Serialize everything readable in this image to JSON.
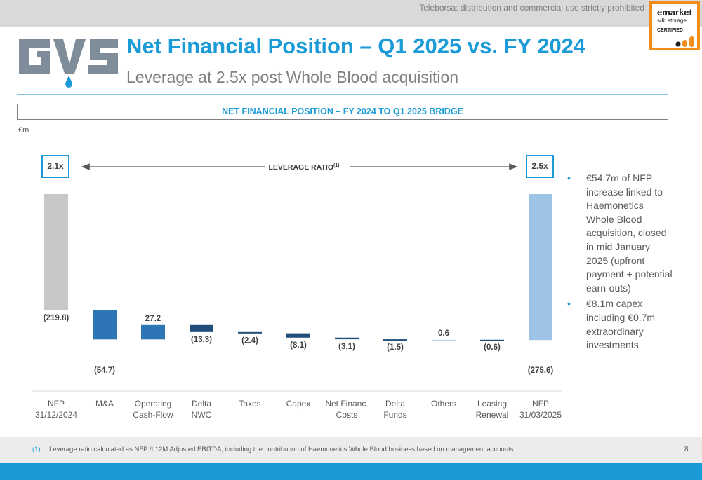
{
  "banner": {
    "text": "Teleborsa: distribution and commercial use strictly prohibited"
  },
  "emarket": {
    "line1": "emarket",
    "line2": "sdir storage",
    "line3": "CERTIFIED"
  },
  "logo": {
    "text": "GVS"
  },
  "header": {
    "title": "Net Financial Position – Q1 2025 vs. FY 2024",
    "subtitle": "Leverage at 2.5x post Whole Blood acquisition"
  },
  "section": {
    "title": "NET FINANCIAL POSITION –  FY 2024 TO Q1 2025 BRIDGE",
    "unit": "€m"
  },
  "leverage": {
    "label": "LEVERAGE RATIO",
    "sup": "(1)",
    "start": "2.1x",
    "end": "2.5x"
  },
  "chart_data": {
    "type": "bar",
    "subtype": "waterfall",
    "title": "NET FINANCIAL POSITION –  FY 2024 TO Q1 2025 BRIDGE",
    "ylabel": "€m",
    "categories": [
      [
        "NFP",
        "31/12/2024"
      ],
      [
        "M&A"
      ],
      [
        "Operating",
        "Cash-Flow"
      ],
      [
        "Delta",
        "NWC"
      ],
      [
        "Taxes"
      ],
      [
        "Capex"
      ],
      [
        "Net Financ.",
        "Costs"
      ],
      [
        "Delta",
        "Funds"
      ],
      [
        "Others"
      ],
      [
        "Leasing",
        "Renewal"
      ],
      [
        "NFP",
        "31/03/2025"
      ]
    ],
    "values": [
      -219.8,
      -54.7,
      27.2,
      -13.3,
      -2.4,
      -8.1,
      -3.1,
      -1.5,
      0.6,
      -0.6,
      -275.6
    ],
    "labels": [
      "(219.8)",
      "(54.7)",
      "27.2",
      "(13.3)",
      "(2.4)",
      "(8.1)",
      "(3.1)",
      "(1.5)",
      "0.6",
      "(0.6)",
      "(275.6)"
    ],
    "kinds": [
      "total",
      "delta",
      "delta",
      "delta",
      "delta",
      "delta",
      "delta",
      "delta",
      "delta",
      "delta",
      "total"
    ],
    "colors": {
      "start_total": "#c8c8c8",
      "end_total": "#9dc3e6",
      "ma": "#2e75b6",
      "operating": "#2e75b6",
      "other_delta": "#1f4e79",
      "positive_small": "#bdd7ee"
    }
  },
  "bullets": [
    "€54.7m of NFP increase linked to Haemonetics Whole Blood acquisition, closed in mid January 2025 (upfront payment + potential earn-outs)",
    "€8.1m capex including €0.7m extraordinary investments"
  ],
  "footnote": {
    "num": "(1)",
    "text": "Leverage ratio calculated as NFP /L12M Adjusted EBITDA, including the contribution of Haemonetics Whole Blood business based on management accounts"
  },
  "page": {
    "number": "8"
  }
}
